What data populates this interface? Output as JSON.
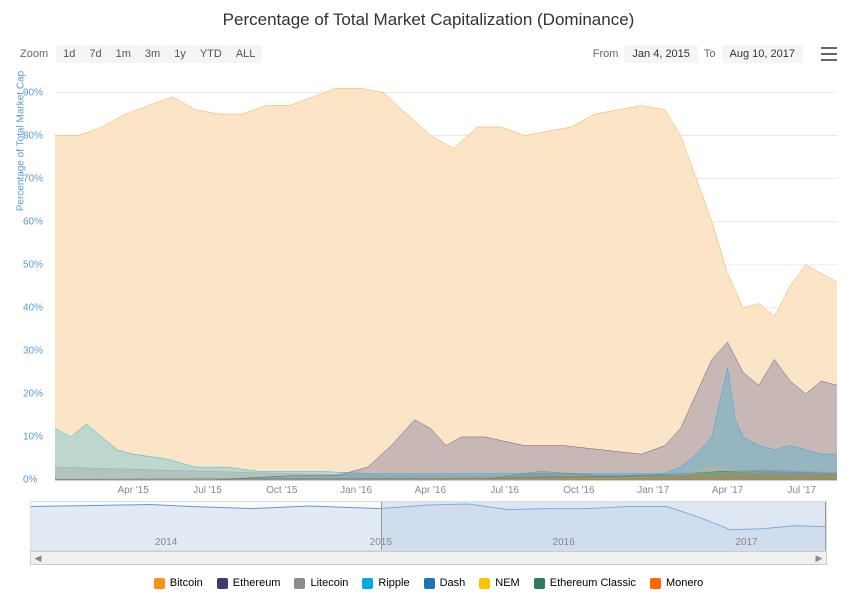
{
  "title": "Percentage of Total Market Capitalization (Dominance)",
  "zoom": {
    "label": "Zoom",
    "buttons": [
      "1d",
      "7d",
      "1m",
      "3m",
      "1y",
      "YTD",
      "ALL"
    ]
  },
  "range": {
    "from_label": "From",
    "from": "Jan 4, 2015",
    "to_label": "To",
    "to": "Aug 10, 2017"
  },
  "chart": {
    "type": "area-line",
    "y_axis_label": "Percentage of Total Market Cap",
    "ylim": [
      0,
      95
    ],
    "ytick_step": 10,
    "y_suffix": "%",
    "x_ticks": [
      "Apr '15",
      "Jul '15",
      "Oct '15",
      "Jan '16",
      "Apr '16",
      "Jul '16",
      "Oct '16",
      "Jan '17",
      "Apr '17",
      "Jul '17"
    ],
    "x_tick_positions": [
      10,
      19.5,
      29,
      38.5,
      48,
      57.5,
      67,
      76.5,
      86,
      95.5
    ],
    "grid_color": "#e6e6e6",
    "axis_font_color": "#5b9bd5",
    "background": "#ffffff",
    "series": [
      {
        "name": "Bitcoin",
        "color": "#f7931a",
        "fill": "#fce5c7",
        "line_width": 1.5,
        "points": [
          [
            0,
            80
          ],
          [
            3,
            80
          ],
          [
            6,
            82
          ],
          [
            9,
            85
          ],
          [
            12,
            87
          ],
          [
            15,
            89
          ],
          [
            18,
            86
          ],
          [
            21,
            85
          ],
          [
            24,
            85
          ],
          [
            27,
            87
          ],
          [
            30,
            87
          ],
          [
            33,
            89
          ],
          [
            36,
            91
          ],
          [
            39,
            91
          ],
          [
            42,
            90
          ],
          [
            45,
            85
          ],
          [
            48,
            80
          ],
          [
            51,
            77
          ],
          [
            54,
            82
          ],
          [
            57,
            82
          ],
          [
            60,
            80
          ],
          [
            63,
            81
          ],
          [
            66,
            82
          ],
          [
            69,
            85
          ],
          [
            72,
            86
          ],
          [
            75,
            87
          ],
          [
            78,
            86
          ],
          [
            80,
            80
          ],
          [
            82,
            70
          ],
          [
            84,
            60
          ],
          [
            86,
            48
          ],
          [
            88,
            40
          ],
          [
            90,
            41
          ],
          [
            92,
            38
          ],
          [
            94,
            45
          ],
          [
            96,
            50
          ],
          [
            98,
            48
          ],
          [
            100,
            46
          ]
        ]
      },
      {
        "name": "Ethereum",
        "color": "#3c3c6e",
        "fill": "rgba(100,100,150,0.35)",
        "line_width": 1.5,
        "points": [
          [
            0,
            0
          ],
          [
            20,
            0
          ],
          [
            25,
            0.5
          ],
          [
            30,
            1
          ],
          [
            36,
            1
          ],
          [
            40,
            3
          ],
          [
            43,
            8
          ],
          [
            46,
            14
          ],
          [
            48,
            12
          ],
          [
            50,
            8
          ],
          [
            52,
            10
          ],
          [
            55,
            10
          ],
          [
            60,
            8
          ],
          [
            65,
            8
          ],
          [
            70,
            7
          ],
          [
            75,
            6
          ],
          [
            78,
            8
          ],
          [
            80,
            12
          ],
          [
            82,
            20
          ],
          [
            84,
            28
          ],
          [
            86,
            32
          ],
          [
            88,
            25
          ],
          [
            90,
            22
          ],
          [
            92,
            28
          ],
          [
            94,
            23
          ],
          [
            96,
            20
          ],
          [
            98,
            23
          ],
          [
            100,
            22
          ]
        ]
      },
      {
        "name": "Ripple",
        "color": "#00aae4",
        "fill": "rgba(0,170,228,0.25)",
        "line_width": 1.5,
        "points": [
          [
            0,
            12
          ],
          [
            2,
            10
          ],
          [
            4,
            13
          ],
          [
            6,
            10
          ],
          [
            8,
            7
          ],
          [
            10,
            6
          ],
          [
            14,
            5
          ],
          [
            18,
            3
          ],
          [
            22,
            3
          ],
          [
            26,
            2
          ],
          [
            30,
            2
          ],
          [
            34,
            2
          ],
          [
            40,
            1.5
          ],
          [
            46,
            1.5
          ],
          [
            50,
            1.5
          ],
          [
            60,
            1.5
          ],
          [
            70,
            1.5
          ],
          [
            78,
            1.5
          ],
          [
            80,
            3
          ],
          [
            82,
            6
          ],
          [
            84,
            10
          ],
          [
            85,
            18
          ],
          [
            86,
            26
          ],
          [
            87,
            14
          ],
          [
            88,
            10
          ],
          [
            90,
            8
          ],
          [
            92,
            7
          ],
          [
            94,
            8
          ],
          [
            96,
            7
          ],
          [
            98,
            6
          ],
          [
            100,
            6
          ]
        ]
      },
      {
        "name": "Litecoin",
        "color": "#8c8c8c",
        "fill": "rgba(140,140,140,0.25)",
        "line_width": 1,
        "points": [
          [
            0,
            3
          ],
          [
            10,
            2.5
          ],
          [
            20,
            2
          ],
          [
            30,
            1.5
          ],
          [
            40,
            1.2
          ],
          [
            50,
            1
          ],
          [
            60,
            1
          ],
          [
            70,
            1
          ],
          [
            80,
            1
          ],
          [
            85,
            2
          ],
          [
            90,
            2.5
          ],
          [
            95,
            2
          ],
          [
            100,
            1.8
          ]
        ]
      },
      {
        "name": "Dash",
        "color": "#1c75bc",
        "fill": "rgba(28,117,188,0.2)",
        "line_width": 1,
        "points": [
          [
            0,
            0.2
          ],
          [
            20,
            0.3
          ],
          [
            40,
            0.4
          ],
          [
            60,
            0.5
          ],
          [
            70,
            0.8
          ],
          [
            80,
            1.5
          ],
          [
            85,
            2
          ],
          [
            90,
            2
          ],
          [
            95,
            1.8
          ],
          [
            100,
            1.5
          ]
        ]
      },
      {
        "name": "NEM",
        "color": "#f7c600",
        "fill": "rgba(247,198,0,0.2)",
        "line_width": 1,
        "points": [
          [
            0,
            0
          ],
          [
            40,
            0.1
          ],
          [
            60,
            0.2
          ],
          [
            75,
            0.5
          ],
          [
            80,
            1
          ],
          [
            82,
            2
          ],
          [
            84,
            3
          ],
          [
            86,
            2.5
          ],
          [
            90,
            1.5
          ],
          [
            95,
            1.2
          ],
          [
            100,
            1.2
          ]
        ]
      },
      {
        "name": "Ethereum Classic",
        "color": "#2f7a5a",
        "fill": "rgba(47,122,90,0.2)",
        "line_width": 1,
        "points": [
          [
            0,
            0
          ],
          [
            55,
            0
          ],
          [
            58,
            1
          ],
          [
            62,
            2
          ],
          [
            66,
            1.5
          ],
          [
            70,
            1
          ],
          [
            80,
            1
          ],
          [
            85,
            2
          ],
          [
            90,
            1.5
          ],
          [
            95,
            1.3
          ],
          [
            100,
            1.2
          ]
        ]
      },
      {
        "name": "Monero",
        "color": "#ff6600",
        "fill": "rgba(255,102,0,0.2)",
        "line_width": 1,
        "points": [
          [
            0,
            0.1
          ],
          [
            30,
            0.1
          ],
          [
            50,
            0.2
          ],
          [
            65,
            0.8
          ],
          [
            70,
            0.6
          ],
          [
            80,
            0.8
          ],
          [
            85,
            1
          ],
          [
            90,
            1
          ],
          [
            95,
            1
          ],
          [
            100,
            1
          ]
        ]
      }
    ]
  },
  "navigator": {
    "ticks": [
      "2014",
      "2015",
      "2016",
      "2017"
    ],
    "tick_positions": [
      17,
      44,
      67,
      90
    ],
    "selection": [
      44,
      100
    ],
    "series_color": "#5b9bd5",
    "points": [
      [
        0,
        86
      ],
      [
        8,
        88
      ],
      [
        15,
        90
      ],
      [
        20,
        86
      ],
      [
        28,
        82
      ],
      [
        35,
        87
      ],
      [
        44,
        82
      ],
      [
        50,
        89
      ],
      [
        55,
        91
      ],
      [
        60,
        80
      ],
      [
        65,
        82
      ],
      [
        70,
        82
      ],
      [
        75,
        86
      ],
      [
        80,
        86
      ],
      [
        84,
        65
      ],
      [
        88,
        40
      ],
      [
        92,
        42
      ],
      [
        96,
        48
      ],
      [
        100,
        46
      ]
    ]
  },
  "legend": [
    {
      "label": "Bitcoin",
      "color": "#f7931a"
    },
    {
      "label": "Ethereum",
      "color": "#3c3c6e"
    },
    {
      "label": "Litecoin",
      "color": "#8c8c8c"
    },
    {
      "label": "Ripple",
      "color": "#00aae4"
    },
    {
      "label": "Dash",
      "color": "#1c75bc"
    },
    {
      "label": "NEM",
      "color": "#f7c600"
    },
    {
      "label": "Ethereum Classic",
      "color": "#2f7a5a"
    },
    {
      "label": "Monero",
      "color": "#ff6600"
    }
  ]
}
